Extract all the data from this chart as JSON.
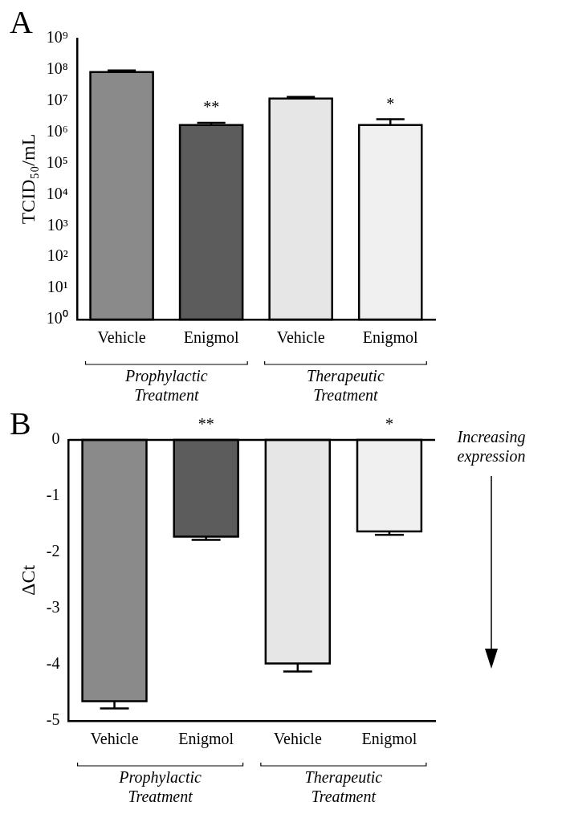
{
  "chart_data": [
    {
      "type": "bar",
      "ylabel": "TCID₅₀/mL",
      "categories": [
        "Vehicle",
        "Enigmol",
        "Vehicle",
        "Enigmol"
      ],
      "log": true,
      "values": [
        85000000,
        1700000,
        12000000,
        1700000
      ],
      "errors": [
        [
          85000000,
          95000000
        ],
        [
          1700000,
          2000000
        ],
        [
          12000000,
          13500000
        ],
        [
          1700000,
          2600000
        ]
      ],
      "value_labels": [
        null,
        "**",
        null,
        "*"
      ],
      "colors": [
        "#8a8a8a",
        "#5c5c5c",
        "#e6e6e6",
        "#f0f0f0"
      ],
      "ylim": [
        1,
        1000000000
      ],
      "yticks": [
        {
          "value": 1,
          "label": "10⁰"
        },
        {
          "value": 10,
          "label": "10¹"
        },
        {
          "value": 100,
          "label": "10²"
        },
        {
          "value": 1000,
          "label": "10³"
        },
        {
          "value": 10000,
          "label": "10⁴"
        },
        {
          "value": 100000,
          "label": "10⁵"
        },
        {
          "value": 1000000,
          "label": "10⁶"
        },
        {
          "value": 10000000,
          "label": "10⁷"
        },
        {
          "value": 100000000,
          "label": "10⁸"
        },
        {
          "value": 1000000000,
          "label": "10⁹"
        }
      ],
      "annotations": [
        "A",
        "Prophylactic Treatment",
        "Therapeutic Treatment"
      ]
    },
    {
      "type": "bar",
      "ylabel": "ΔCt",
      "categories": [
        "Vehicle",
        "Enigmol",
        "Vehicle",
        "Enigmol"
      ],
      "values": [
        -4.65,
        -1.72,
        -3.98,
        -1.63
      ],
      "errors": [
        [
          -4.78,
          -4.65
        ],
        [
          -1.78,
          -1.72
        ],
        [
          -4.12,
          -3.98
        ],
        [
          -1.69,
          -1.63
        ]
      ],
      "value_labels": [
        null,
        "**",
        null,
        "*"
      ],
      "colors": [
        "#8a8a8a",
        "#5c5c5c",
        "#e6e6e6",
        "#f0f0f0"
      ],
      "ylim": [
        -5,
        0
      ],
      "yticks": [
        -5,
        -4,
        -3,
        -2,
        -1,
        0
      ],
      "ref_lines": [
        {
          "axis": "y",
          "value": 0
        }
      ],
      "annotations": [
        "B",
        "Prophylactic Treatment",
        "Therapeutic Treatment",
        "Increasing expression"
      ]
    }
  ]
}
